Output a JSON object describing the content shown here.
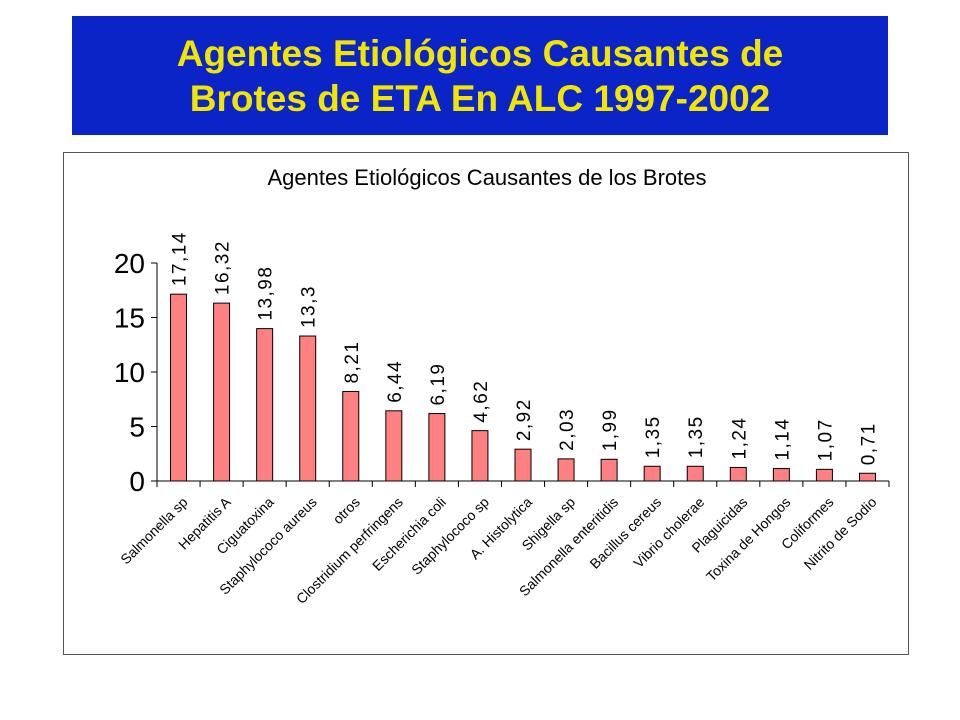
{
  "slide": {
    "title_line1": "Agentes Etiológicos Causantes de",
    "title_line2": "Brotes de ETA En ALC 1997-2002",
    "banner_color": "#0b24c8",
    "title_color": "#f2e600"
  },
  "chart_data": {
    "type": "bar",
    "title": "Agentes Etiológicos Causantes de los Brotes",
    "categories": [
      "Salmonella sp",
      "Hepatitis A",
      "Ciguatoxina",
      "Staphylococo aureus",
      "otros",
      "Clostridium perfringens",
      "Escherichia coli",
      "Staphylococo sp",
      "A. Histolytica",
      "Shigella sp",
      "Salmonella enteritidis",
      "Bacillus cereus",
      "Vibrio cholerae",
      "Plaguicidas",
      "Toxina de Hongos",
      "Coliformes",
      "Nitrito de Sodio"
    ],
    "values": [
      17.14,
      16.32,
      13.98,
      13.3,
      8.21,
      6.44,
      6.19,
      4.62,
      2.92,
      2.03,
      1.99,
      1.35,
      1.35,
      1.24,
      1.14,
      1.07,
      0.71
    ],
    "data_labels": [
      "17,14",
      "16,32",
      "13,98",
      "13,3",
      "8,21",
      "6,44",
      "6,19",
      "4,62",
      "2,92",
      "2,03",
      "1,99",
      "1,35",
      "1,35",
      "1,24",
      "1,14",
      "1,07",
      "0,71"
    ],
    "yticks": [
      "0",
      "5",
      "10",
      "15",
      "20"
    ],
    "ylim": [
      0,
      20
    ],
    "xlabel": "",
    "ylabel": "",
    "grid": false,
    "legend": "none",
    "bar_color": "#ff8080",
    "bar_edge_color": "#000000"
  }
}
